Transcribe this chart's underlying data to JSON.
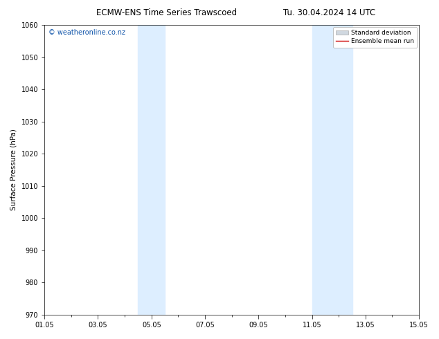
{
  "title_left": "ECMW-ENS Time Series Trawscoed",
  "title_right": "Tu. 30.04.2024 14 UTC",
  "ylabel": "Surface Pressure (hPa)",
  "watermark": "© weatheronline.co.nz",
  "ylim": [
    970,
    1060
  ],
  "yticks": [
    970,
    980,
    990,
    1000,
    1010,
    1020,
    1030,
    1040,
    1050,
    1060
  ],
  "xtick_labels": [
    "01.05",
    "03.05",
    "05.05",
    "07.05",
    "09.05",
    "11.05",
    "13.05",
    "15.05"
  ],
  "xtick_positions": [
    0,
    2,
    4,
    6,
    8,
    10,
    12,
    14
  ],
  "xlim": [
    0,
    14
  ],
  "shaded_bands": [
    {
      "x_start": 3.5,
      "x_end": 4.5
    },
    {
      "x_start": 10.0,
      "x_end": 11.5
    }
  ],
  "shade_color": "#ddeeff",
  "legend_sd_color": "#d0d8e0",
  "legend_mean_color": "#cc0000",
  "background_color": "#ffffff",
  "title_fontsize": 8.5,
  "ylabel_fontsize": 7.5,
  "tick_fontsize": 7.0,
  "watermark_fontsize": 7.0,
  "legend_fontsize": 6.5
}
